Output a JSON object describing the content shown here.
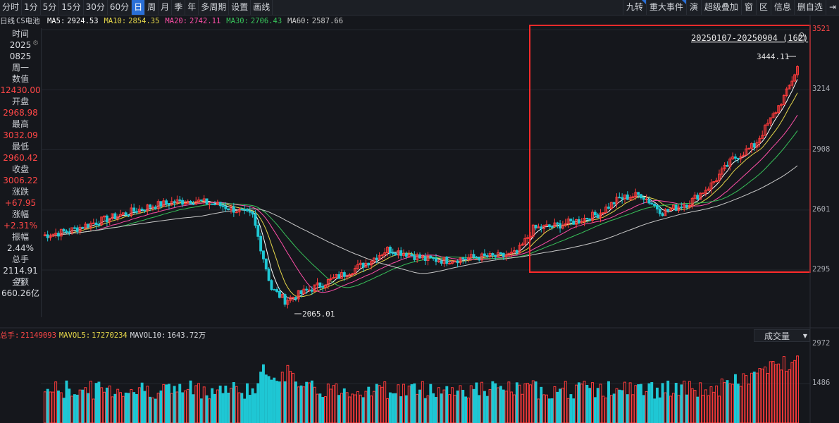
{
  "toolbar": {
    "periods": [
      "分时",
      "1分",
      "5分",
      "15分",
      "30分",
      "60分",
      "日",
      "周",
      "月",
      "季",
      "年",
      "多周期",
      "设置",
      "画线"
    ],
    "active_period": "日",
    "right_tools": [
      "九转",
      "重大事件",
      "演",
      "超级叠加",
      "窗",
      "区",
      "信息",
      "删自选"
    ]
  },
  "ma_legend": {
    "prefix": "日线",
    "name": "CS电池",
    "items": [
      {
        "label": "MA5:",
        "value": "2924.53",
        "color": "#ffffff"
      },
      {
        "label": "MA10:",
        "value": "2854.35",
        "color": "#e6d74a"
      },
      {
        "label": "MA20:",
        "value": "2742.11",
        "color": "#ff4fa8"
      },
      {
        "label": "MA30:",
        "value": "2706.43",
        "color": "#38c25a"
      },
      {
        "label": "MA60:",
        "value": "2587.66",
        "color": "#c8c8c8"
      }
    ]
  },
  "info_panel": [
    {
      "label": "时间",
      "values": [
        "2025",
        "0825",
        "周一"
      ],
      "color": "white"
    },
    {
      "label": "数值",
      "values": [
        "12430.00"
      ],
      "color": "red"
    },
    {
      "label": "开盘",
      "values": [
        "2968.98"
      ],
      "color": "red"
    },
    {
      "label": "最高",
      "values": [
        "3032.09"
      ],
      "color": "red"
    },
    {
      "label": "最低",
      "values": [
        "2960.42"
      ],
      "color": "red"
    },
    {
      "label": "收盘",
      "values": [
        "3006.22"
      ],
      "color": "red"
    },
    {
      "label": "涨跌",
      "values": [
        "+67.95"
      ],
      "color": "red"
    },
    {
      "label": "涨幅",
      "values": [
        "+2.31%"
      ],
      "color": "red"
    },
    {
      "label": "振幅",
      "values": [
        "2.44%"
      ],
      "color": "white"
    },
    {
      "label": "总手",
      "values": [
        "2114.91万"
      ],
      "color": "white"
    },
    {
      "label": "金额",
      "values": [
        "660.26亿"
      ],
      "color": "white"
    }
  ],
  "volume_header": {
    "items": [
      {
        "label": "总手:",
        "value": "21149093",
        "color": "#ff4747"
      },
      {
        "label": "MAVOL5:",
        "value": "17270234",
        "color": "#e6d74a"
      },
      {
        "label": "MAVOL10:",
        "value": "1643.72万",
        "color": "#d9dbe0"
      }
    ],
    "dropdown": "成交量"
  },
  "chart_data": {
    "type": "candlestick",
    "price_axis": {
      "ticks": [
        2295,
        2601,
        2908,
        3214,
        3521
      ],
      "top_label_color": "#ff4747",
      "ylim": [
        2295,
        3521
      ]
    },
    "volume_axis": {
      "ticks": [
        1486,
        2972
      ]
    },
    "annotations": {
      "range_label": "20250107-20250904 (162)",
      "high_label": "3444.11",
      "low_label": "2065.01"
    },
    "n_bars": 180,
    "colors": {
      "up": "#ff3b3b",
      "down": "#1fc7d4"
    }
  }
}
